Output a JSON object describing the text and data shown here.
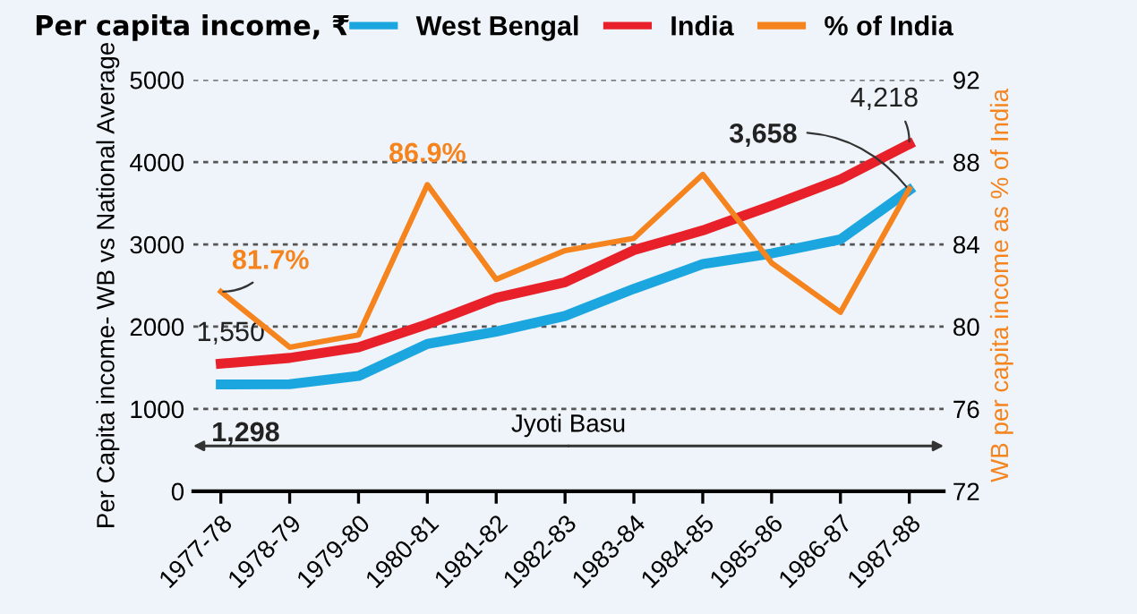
{
  "chart_data": {
    "type": "line",
    "title": "Per capita income, ₹",
    "ylabel": "Per Capita income- WB vs National Average",
    "y2label": "WB per capita income as % of India",
    "categories": [
      "1977-78",
      "1978-79",
      "1979-80",
      "1980-81",
      "1981-82",
      "1982-83",
      "1983-84",
      "1984-85",
      "1985-86",
      "1986-87",
      "1987-88"
    ],
    "series": [
      {
        "name": "West Bengal",
        "color": "#1ba6e0",
        "values": [
          1298,
          1300,
          1400,
          1790,
          1940,
          2130,
          2460,
          2760,
          2890,
          3060,
          3658
        ],
        "value_labels": [
          "1,298",
          null,
          null,
          null,
          null,
          null,
          null,
          null,
          null,
          null,
          "3,658"
        ]
      },
      {
        "name": "India",
        "color": "#e8202a",
        "values": [
          1550,
          1620,
          1750,
          2030,
          2350,
          2540,
          2930,
          3170,
          3470,
          3790,
          4218
        ],
        "value_labels": [
          "1,550",
          null,
          null,
          null,
          null,
          null,
          null,
          null,
          null,
          null,
          "4,218"
        ]
      },
      {
        "name": "% of India",
        "color": "#f5841f",
        "axis": "y2",
        "values": [
          81.7,
          79.0,
          79.6,
          86.9,
          82.3,
          83.7,
          84.3,
          87.4,
          83.1,
          80.7,
          86.7
        ],
        "value_labels": [
          "81.7%",
          null,
          null,
          "86.9%",
          null,
          null,
          null,
          null,
          null,
          null,
          null
        ]
      }
    ],
    "ylim": [
      0,
      5000
    ],
    "yticks": [
      0,
      1000,
      2000,
      3000,
      4000,
      5000
    ],
    "y2lim": [
      72,
      92
    ],
    "y2ticks": [
      72,
      76,
      80,
      84,
      88,
      92
    ],
    "grid": "y",
    "legend": "top",
    "annotations": [
      "Jyoti Basu"
    ]
  }
}
